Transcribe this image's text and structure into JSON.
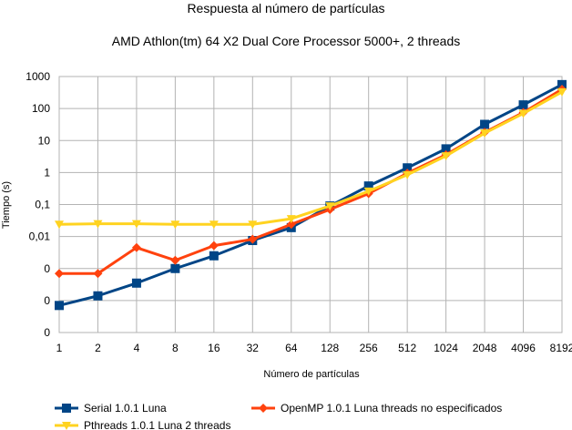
{
  "chart_data": {
    "type": "line",
    "title": "Respuesta al número de partículas",
    "subtitle": "AMD Athlon(tm) 64 X2 Dual Core Processor 5000+, 2 threads",
    "xlabel": "Número de partículas",
    "ylabel": "Tiempo (s)",
    "y_scale": "log",
    "ylim": [
      1e-05,
      1000
    ],
    "y_ticks": [
      1000,
      100,
      10,
      1,
      0.1,
      0.01,
      0.001,
      0.0001,
      1e-05
    ],
    "y_tick_labels": [
      "1000",
      "100",
      "10",
      "1",
      "0,1",
      "0,01",
      "0",
      "0",
      "0"
    ],
    "x": [
      1,
      2,
      4,
      8,
      16,
      32,
      64,
      128,
      256,
      512,
      1024,
      2048,
      4096,
      8192
    ],
    "categories": [
      "1",
      "2",
      "4",
      "8",
      "16",
      "32",
      "64",
      "128",
      "256",
      "512",
      "1024",
      "2048",
      "4096",
      "8192"
    ],
    "grid": true,
    "legend_position": "bottom",
    "series": [
      {
        "name": "Serial 1.0.1 Luna",
        "color": "#004586",
        "marker": "square",
        "values": [
          7e-05,
          0.00014,
          0.00035,
          0.001,
          0.0025,
          0.0075,
          0.019,
          0.09,
          0.38,
          1.4,
          5.5,
          32,
          130,
          560
        ]
      },
      {
        "name": "OpenMP 1.0.1 Luna threads no especificados",
        "color": "#ff420e",
        "marker": "diamond",
        "values": [
          0.0007,
          0.0007,
          0.0045,
          0.0018,
          0.0052,
          0.0082,
          0.024,
          0.07,
          0.22,
          0.95,
          3.6,
          18,
          75,
          400
        ]
      },
      {
        "name": "Pthreads 1.0.1 Luna 2 threads",
        "color": "#ffd320",
        "marker": "triangle-down",
        "values": [
          0.024,
          0.025,
          0.025,
          0.024,
          0.024,
          0.024,
          0.036,
          0.09,
          0.26,
          0.85,
          3.3,
          17,
          70,
          330
        ]
      }
    ]
  }
}
